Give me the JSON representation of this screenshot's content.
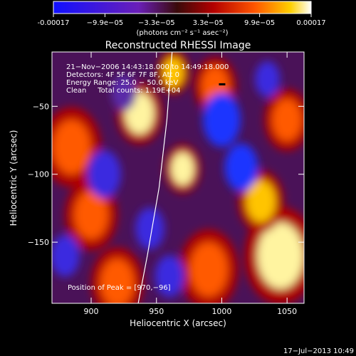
{
  "chart_data": {
    "type": "heatmap",
    "colorbar": {
      "ticks": [
        "-0.00017",
        "−9.9e−05",
        "−3.3e−05",
        "3.3e−05",
        "9.9e−05",
        "0.00017"
      ],
      "unit_line": "(photons cm⁻² s⁻¹ asec⁻²)",
      "colors": [
        "#1010ff",
        "#6a1fb8",
        "#3a0a0a",
        "#b30000",
        "#ff5500",
        "#ffd000",
        "#ffffff"
      ]
    },
    "title": "Reconstructed RHESSI Image",
    "info_lines": [
      "21−Nov−2006 14:43:18.000 to 14:49:18.000",
      "Detectors: 4F 5F 6F 7F 8F, Att 0",
      "Energy Range: 25.0 − 50.0 keV",
      "Clean     Total counts: 1.19E+04"
    ],
    "peak_label": "Position of Peak = [970,−96]",
    "xlabel": "Heliocentric X (arcsec)",
    "ylabel": "Heliocentric Y (arcsec)",
    "xlim": [
      870,
      1063
    ],
    "ylim": [
      -195,
      -10
    ],
    "xticks": [
      900,
      950,
      1000,
      1050
    ],
    "yticks": [
      -50,
      -100,
      -150
    ],
    "xtick_labels": [
      "900",
      "950",
      "1000",
      "1050"
    ],
    "ytick_labels": [
      "−50",
      "−100",
      "−150"
    ],
    "peak": {
      "x": 970,
      "y": -96
    },
    "limb_curve": [
      [
        962,
        -10
      ],
      [
        958,
        -60
      ],
      [
        952,
        -110
      ],
      [
        943,
        -160
      ],
      [
        936,
        -195
      ]
    ],
    "blobs": [
      {
        "x": 937,
        "y": -55,
        "r": 14,
        "v": 1.0
      },
      {
        "x": 963,
        "y": -25,
        "r": 10,
        "v": 0.9
      },
      {
        "x": 970,
        "y": -96,
        "r": 11,
        "v": 1.0
      },
      {
        "x": 1045,
        "y": -160,
        "r": 22,
        "v": 1.0
      },
      {
        "x": 1030,
        "y": -120,
        "r": 14,
        "v": 0.8
      },
      {
        "x": 885,
        "y": -80,
        "r": 18,
        "v": 0.7
      },
      {
        "x": 900,
        "y": -130,
        "r": 16,
        "v": 0.6
      },
      {
        "x": 990,
        "y": -170,
        "r": 18,
        "v": 0.7
      },
      {
        "x": 1050,
        "y": -60,
        "r": 14,
        "v": 0.6
      },
      {
        "x": 920,
        "y": -180,
        "r": 16,
        "v": 0.6
      },
      {
        "x": 995,
        "y": -35,
        "r": 13,
        "v": 0.6
      },
      {
        "x": 945,
        "y": -140,
        "r": 14,
        "v": -0.8
      },
      {
        "x": 910,
        "y": -100,
        "r": 16,
        "v": -0.8
      },
      {
        "x": 1000,
        "y": -60,
        "r": 18,
        "v": -1.0
      },
      {
        "x": 1015,
        "y": -95,
        "r": 16,
        "v": -0.9
      },
      {
        "x": 960,
        "y": -175,
        "r": 14,
        "v": -0.7
      },
      {
        "x": 880,
        "y": -160,
        "r": 14,
        "v": -0.7
      },
      {
        "x": 1035,
        "y": -30,
        "r": 12,
        "v": -0.7
      },
      {
        "x": 925,
        "y": -40,
        "r": 12,
        "v": -0.6
      }
    ]
  },
  "timestamp": "17−Jul−2013 10:49"
}
